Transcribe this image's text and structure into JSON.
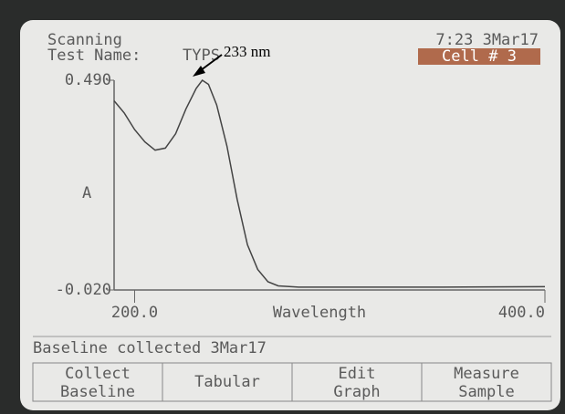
{
  "screen": {
    "status": "Scanning",
    "test_label": "Test Name:",
    "test_name": "TYPS",
    "clock": "7:23 3Mar17",
    "cell": "Cell # 3",
    "message": "Baseline collected 3Mar17",
    "buttons": [
      "Collect Baseline",
      "Tabular",
      "Edit Graph",
      "Measure Sample"
    ]
  },
  "chart_data": {
    "type": "line",
    "annotation": "233 nm",
    "x_label": "Wavelength",
    "y_label": "A",
    "x": [
      190,
      195,
      200,
      205,
      210,
      215,
      220,
      225,
      230,
      233,
      236,
      240,
      245,
      250,
      255,
      260,
      265,
      270,
      280,
      300,
      350,
      400
    ],
    "series": [
      {
        "color": "#444444",
        "values": [
          0.44,
          0.41,
          0.37,
          0.34,
          0.32,
          0.325,
          0.36,
          0.42,
          0.47,
          0.49,
          0.48,
          0.43,
          0.33,
          0.2,
          0.09,
          0.03,
          0.0,
          -0.01,
          -0.013,
          -0.013,
          -0.013,
          -0.012
        ]
      }
    ],
    "xlim": [
      190,
      400
    ],
    "xticks": [
      {
        "value": 200,
        "label": "200.0"
      },
      {
        "value": 400,
        "label": "400.0"
      }
    ],
    "ylim": [
      -0.02,
      0.49
    ],
    "yticks": [
      {
        "value": -0.02,
        "label": "-0.020"
      },
      {
        "value": 0.49,
        "label": "0.490"
      }
    ]
  }
}
